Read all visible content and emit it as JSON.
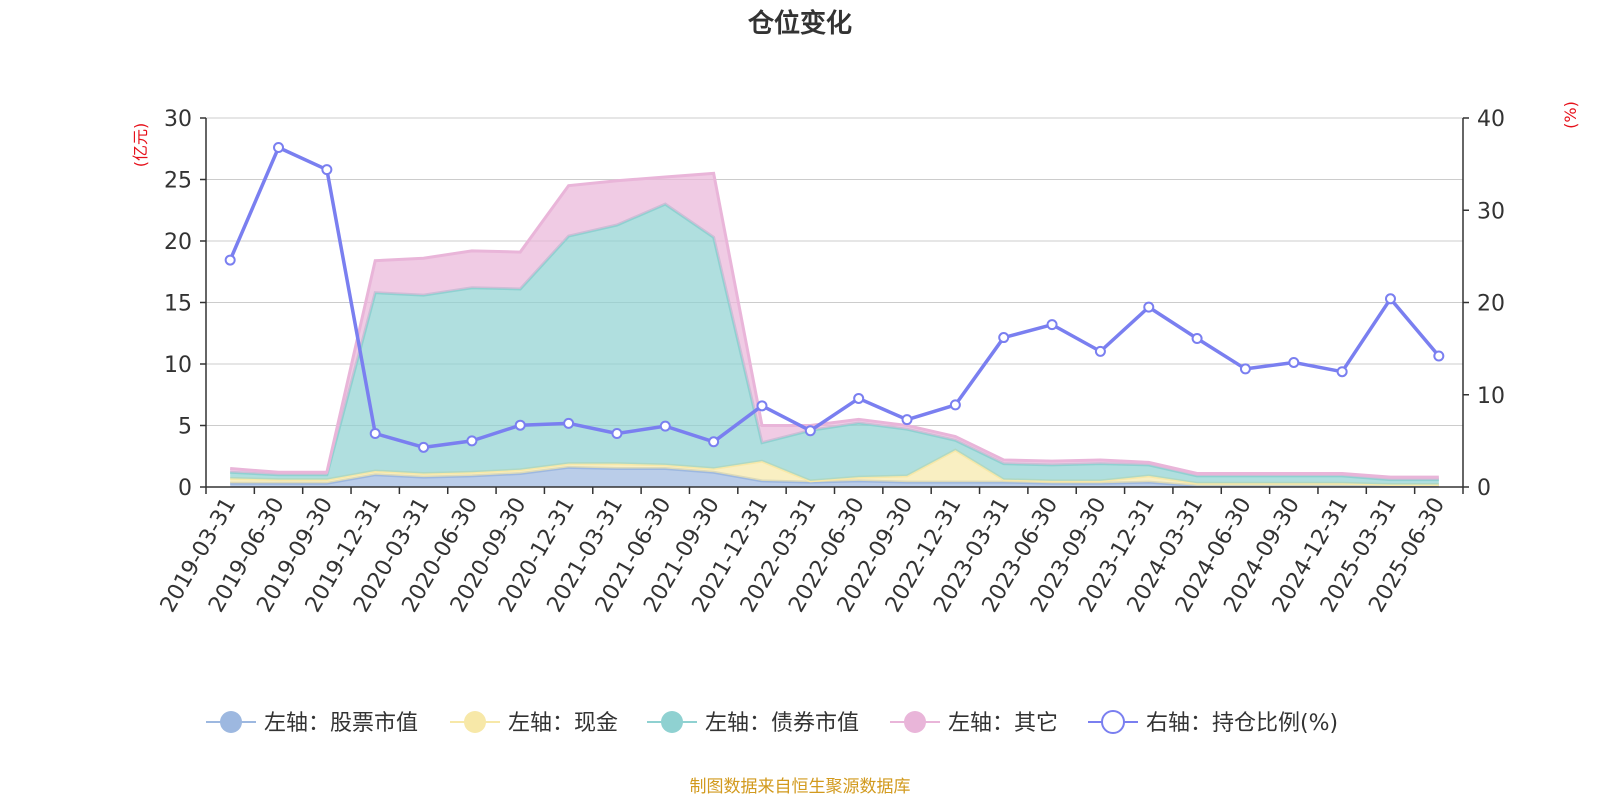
{
  "chart_data": {
    "type": "area",
    "title": "仓位变化",
    "left_unit": "(亿元)",
    "right_unit": "(%)",
    "categories": [
      "2019-03-31",
      "2019-06-30",
      "2019-09-30",
      "2019-12-31",
      "2020-03-31",
      "2020-06-30",
      "2020-09-30",
      "2020-12-31",
      "2021-03-31",
      "2021-06-30",
      "2021-09-30",
      "2021-12-31",
      "2022-03-31",
      "2022-06-30",
      "2022-09-30",
      "2022-12-31",
      "2023-03-31",
      "2023-06-30",
      "2023-09-30",
      "2023-12-31",
      "2024-03-31",
      "2024-06-30",
      "2024-09-30",
      "2024-12-31",
      "2025-03-31",
      "2025-06-30"
    ],
    "left_axis": {
      "min": 0,
      "max": 30,
      "ticks": [
        "0",
        "5",
        "10",
        "15",
        "20",
        "25",
        "30"
      ]
    },
    "right_axis": {
      "min": 0,
      "max": 40,
      "ticks": [
        "0",
        "10",
        "20",
        "30",
        "40"
      ]
    },
    "stacked_series": [
      {
        "name": "左轴：股票市值",
        "color": "#9db8e0",
        "values": [
          0.3,
          0.3,
          0.3,
          1.0,
          0.8,
          0.9,
          1.1,
          1.6,
          1.5,
          1.5,
          1.2,
          0.5,
          0.4,
          0.5,
          0.4,
          0.4,
          0.4,
          0.3,
          0.3,
          0.4,
          0.1,
          0.1,
          0.1,
          0.1,
          0.1,
          0.1
        ]
      },
      {
        "name": "左轴：现金",
        "color": "#f7e8a8",
        "values": [
          0.4,
          0.3,
          0.3,
          0.3,
          0.3,
          0.3,
          0.3,
          0.3,
          0.4,
          0.3,
          0.3,
          1.6,
          0.1,
          0.3,
          0.5,
          2.6,
          0.2,
          0.2,
          0.2,
          0.5,
          0.2,
          0.2,
          0.2,
          0.2,
          0.1,
          0.1
        ]
      },
      {
        "name": "左轴：债券市值",
        "color": "#8fd1d1",
        "values": [
          0.5,
          0.4,
          0.4,
          14.5,
          14.5,
          15.0,
          14.7,
          18.5,
          19.4,
          21.2,
          18.8,
          1.5,
          4.1,
          4.4,
          3.8,
          0.8,
          1.3,
          1.3,
          1.4,
          0.9,
          0.6,
          0.6,
          0.6,
          0.6,
          0.4,
          0.4
        ]
      },
      {
        "name": "左轴：其它",
        "color": "#e9b5d9",
        "values": [
          0.3,
          0.2,
          0.2,
          2.6,
          3.0,
          3.0,
          3.0,
          4.1,
          3.6,
          2.2,
          5.2,
          1.4,
          0.4,
          0.3,
          0.3,
          0.3,
          0.3,
          0.3,
          0.3,
          0.2,
          0.2,
          0.2,
          0.2,
          0.2,
          0.2,
          0.2
        ]
      }
    ],
    "line_series": {
      "name": "右轴：持仓比例(%)",
      "color": "#7a7ff0",
      "values": [
        24.6,
        36.8,
        34.4,
        5.8,
        4.3,
        5.0,
        6.7,
        6.9,
        5.8,
        6.6,
        4.9,
        8.8,
        6.1,
        9.6,
        7.3,
        8.9,
        16.2,
        17.6,
        14.7,
        19.5,
        16.1,
        12.8,
        13.5,
        12.5,
        20.4,
        14.2
      ]
    }
  },
  "footer": {
    "source": "制图数据来自恒生聚源数据库"
  }
}
